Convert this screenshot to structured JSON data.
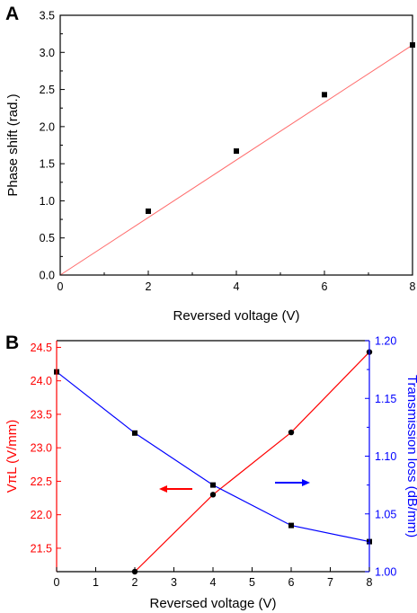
{
  "chart_data": [
    {
      "panel": "A",
      "type": "line",
      "xlabel": "Reversed voltage (V)",
      "ylabel": "Phase shift (rad.)",
      "xlim": [
        0,
        8
      ],
      "ylim": [
        0,
        3.5
      ],
      "xticks": [
        "0",
        "2",
        "4",
        "6",
        "8"
      ],
      "yticks": [
        "0.0",
        "0.5",
        "1.0",
        "1.5",
        "2.0",
        "2.5",
        "3.0",
        "3.5"
      ],
      "series": [
        {
          "x": [
            2,
            4,
            6,
            8
          ],
          "y": [
            0.86,
            1.67,
            2.43,
            3.1
          ],
          "marker": "square",
          "color": "#000000"
        }
      ],
      "fit_line": {
        "x": [
          0,
          8
        ],
        "y": [
          0,
          3.1
        ],
        "color": "#ff6a6a"
      }
    },
    {
      "panel": "B",
      "type": "line",
      "xlabel": "Reversed voltage (V)",
      "xlim": [
        0,
        8
      ],
      "xticks": [
        "0",
        "1",
        "2",
        "3",
        "4",
        "5",
        "6",
        "7",
        "8"
      ],
      "y_left": {
        "label": "VπL (V/mm)",
        "color": "#ff0000",
        "ylim": [
          21.15,
          24.6
        ],
        "ticks": [
          "21.5",
          "22.0",
          "22.5",
          "23.0",
          "23.5",
          "24.0",
          "24.5"
        ]
      },
      "y_right": {
        "label": "Transmission loss (dB/mm)",
        "color": "#0000ff",
        "ylim": [
          1.0,
          1.2
        ],
        "ticks": [
          "1.00",
          "1.05",
          "1.10",
          "1.15",
          "1.20"
        ]
      },
      "series": [
        {
          "axis": "left",
          "color": "#ff0000",
          "marker": "circle",
          "x": [
            2,
            4,
            6,
            8
          ],
          "y": [
            21.15,
            22.3,
            23.23,
            24.43
          ]
        },
        {
          "axis": "right",
          "color": "#0000ff",
          "marker": "square",
          "x": [
            0,
            2,
            4,
            6,
            8
          ],
          "y": [
            1.173,
            1.12,
            1.075,
            1.04,
            1.026
          ]
        }
      ],
      "annotations": [
        {
          "type": "arrow",
          "direction": "left",
          "color": "#ff0000",
          "points_to": "left axis"
        },
        {
          "type": "arrow",
          "direction": "right",
          "color": "#0000ff",
          "points_to": "right axis"
        }
      ]
    }
  ]
}
